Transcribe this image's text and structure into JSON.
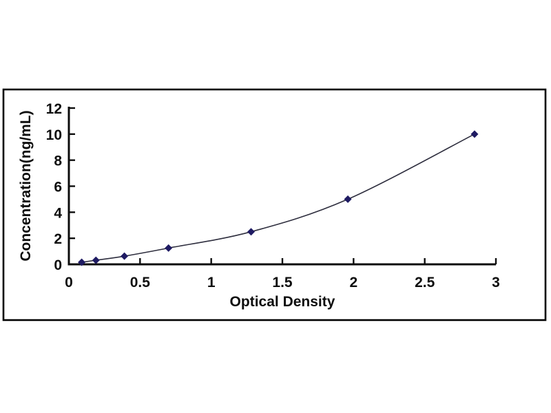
{
  "figure": {
    "background": "#ffffff",
    "border_color": "#000000"
  },
  "chart_data": {
    "type": "scatter",
    "subtype": "smooth-line-with-markers",
    "title": "",
    "xlabel": "Optical Density",
    "ylabel": "Concentration(ng/mL)",
    "x": [
      0.09,
      0.19,
      0.39,
      0.7,
      1.28,
      1.96,
      2.85
    ],
    "y": [
      0.156,
      0.312,
      0.625,
      1.25,
      2.5,
      5,
      10
    ],
    "xlim": [
      0,
      3
    ],
    "ylim": [
      0,
      12
    ],
    "x_ticks": [
      0,
      0.5,
      1,
      1.5,
      2,
      2.5,
      3
    ],
    "x_tick_labels": [
      "0",
      "0.5",
      "1",
      "1.5",
      "2",
      "2.5",
      "3"
    ],
    "y_ticks": [
      0,
      2,
      4,
      6,
      8,
      10,
      12
    ],
    "y_tick_labels": [
      "0",
      "2",
      "4",
      "6",
      "8",
      "10",
      "12"
    ],
    "grid": false,
    "legend_position": "none",
    "marker_shape": "diamond",
    "marker_color": "#1f1b63",
    "line_color": "#2e2e3e",
    "axis_color": "#0d0d0d",
    "tick_direction": "inside"
  }
}
